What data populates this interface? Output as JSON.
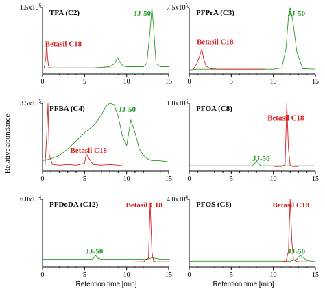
{
  "figure": {
    "ylabel": "Relative abundance",
    "xlabel": "Retention time [min]"
  },
  "colors": {
    "JJ-50": "#2a9a2a",
    "Betasil C18": "#d62020"
  },
  "chart_data": [
    {
      "type": "line",
      "title": "TFA (C2)",
      "ymax_label": "1.5x10",
      "ymax_exp": "6",
      "xlim": [
        0,
        15
      ],
      "ylim": [
        0,
        1
      ],
      "xticks": [
        "0",
        "5",
        "10",
        "15"
      ],
      "series": [
        {
          "name": "JJ-50",
          "x": [
            0,
            1,
            2,
            3,
            4,
            5,
            6,
            7,
            8,
            8.6,
            8.9,
            9.2,
            9.6,
            10,
            11,
            12,
            12.4,
            12.8,
            13.0,
            13.2,
            13.5,
            14,
            15
          ],
          "y": [
            0.05,
            0.05,
            0.05,
            0.05,
            0.05,
            0.05,
            0.05,
            0.06,
            0.07,
            0.12,
            0.22,
            0.14,
            0.08,
            0.07,
            0.07,
            0.07,
            0.12,
            0.65,
            1.0,
            0.7,
            0.12,
            0.07,
            0.07
          ]
        },
        {
          "name": "Betasil C18",
          "x": [
            0.2,
            0.4,
            0.5,
            0.6,
            0.7,
            0.8,
            1.0,
            1.5,
            3,
            5,
            7,
            9
          ],
          "y": [
            0.05,
            0.22,
            0.45,
            0.22,
            0.09,
            0.06,
            0.05,
            0.05,
            0.05,
            0.05,
            0.05,
            0.05
          ]
        }
      ]
    },
    {
      "type": "line",
      "title": "PFPrA (C3)",
      "ymax_label": "7.5x10",
      "ymax_exp": "5",
      "xlim": [
        0,
        15
      ],
      "ylim": [
        0,
        1
      ],
      "xticks": [
        "0",
        "5",
        "10",
        "15"
      ],
      "series": [
        {
          "name": "JJ-50",
          "x": [
            0,
            1,
            2,
            4,
            6,
            8,
            10,
            11,
            11.5,
            11.8,
            12.0,
            12.3,
            12.8,
            13.5,
            15
          ],
          "y": [
            0.02,
            0.03,
            0.03,
            0.03,
            0.03,
            0.03,
            0.03,
            0.05,
            0.35,
            0.85,
            1.0,
            0.8,
            0.3,
            0.04,
            0.03
          ]
        },
        {
          "name": "Betasil C18",
          "x": [
            0.5,
            0.9,
            1.2,
            1.5,
            1.7,
            2.0,
            2.5,
            3.5,
            5,
            7,
            9
          ],
          "y": [
            0.03,
            0.12,
            0.22,
            0.35,
            0.2,
            0.08,
            0.04,
            0.03,
            0.03,
            0.03,
            0.03
          ]
        }
      ]
    },
    {
      "type": "line",
      "title": "PFBA (C4)",
      "ymax_label": "3.5x10",
      "ymax_exp": "5",
      "xlim": [
        0,
        15
      ],
      "ylim": [
        0,
        1
      ],
      "xticks": [
        "0",
        "5",
        "10",
        "15"
      ],
      "series": [
        {
          "name": "JJ-50",
          "x": [
            0,
            1,
            2,
            3,
            4,
            5,
            6,
            7,
            7.5,
            8,
            8.5,
            9,
            9.5,
            10,
            10.5,
            11,
            11.5,
            12,
            12.5,
            13,
            14,
            15
          ],
          "y": [
            0.12,
            0.15,
            0.2,
            0.3,
            0.42,
            0.55,
            0.65,
            0.82,
            0.95,
            1.0,
            0.98,
            0.8,
            0.5,
            0.35,
            0.75,
            0.55,
            0.3,
            0.2,
            0.15,
            0.12,
            0.12,
            0.1
          ]
        },
        {
          "name": "Betasil C18",
          "x": [
            0.3,
            0.5,
            0.65,
            0.8,
            1.2,
            2,
            3,
            4,
            5,
            5.2,
            6,
            7,
            8,
            9,
            9.5
          ],
          "y": [
            0.05,
            0.5,
            1.0,
            0.2,
            0.06,
            0.05,
            0.06,
            0.05,
            0.08,
            0.22,
            0.06,
            0.05,
            0.06,
            0.05,
            0.04
          ]
        }
      ]
    },
    {
      "type": "line",
      "title": "PFOA (C8)",
      "ymax_label": "1.0x10",
      "ymax_exp": "6",
      "xlim": [
        0,
        15
      ],
      "ylim": [
        0,
        1
      ],
      "xticks": [
        "0",
        "5",
        "10",
        "15"
      ],
      "series": [
        {
          "name": "JJ-50",
          "x": [
            0,
            2,
            4,
            6,
            7.5,
            7.8,
            8.0,
            8.2,
            8.5,
            10,
            11.5,
            12,
            13,
            15
          ],
          "y": [
            0.04,
            0.04,
            0.04,
            0.04,
            0.04,
            0.08,
            0.12,
            0.08,
            0.04,
            0.04,
            0.04,
            0.04,
            0.04,
            0.04
          ]
        },
        {
          "name": "Betasil C18",
          "x": [
            10,
            11,
            11.4,
            11.6,
            11.8,
            12.0,
            12.3,
            13
          ],
          "y": [
            0.03,
            0.03,
            0.06,
            1.0,
            0.3,
            0.05,
            0.03,
            0.03
          ]
        }
      ]
    },
    {
      "type": "line",
      "title": "PFDoDA (C12)",
      "ymax_label": "6.0x10",
      "ymax_exp": "4",
      "xlim": [
        0,
        15
      ],
      "ylim": [
        0,
        1
      ],
      "xticks": [
        "0",
        "5",
        "10",
        "15"
      ],
      "series": [
        {
          "name": "JJ-50",
          "x": [
            0,
            2,
            4,
            6,
            6.3,
            6.6,
            7,
            9,
            11,
            12.5,
            13,
            13.5,
            14,
            15
          ],
          "y": [
            0.08,
            0.08,
            0.08,
            0.08,
            0.14,
            0.09,
            0.08,
            0.08,
            0.08,
            0.08,
            0.1,
            0.09,
            0.08,
            0.08
          ]
        },
        {
          "name": "Betasil C18",
          "x": [
            11,
            12,
            12.6,
            12.8,
            13.0,
            13.2,
            13.5,
            14,
            15
          ],
          "y": [
            0.04,
            0.04,
            0.1,
            0.95,
            0.2,
            0.05,
            0.04,
            0.04,
            0.04
          ]
        }
      ]
    },
    {
      "type": "line",
      "title": "PFOS (C8)",
      "ymax_label": "4.0x10",
      "ymax_exp": "4",
      "xlim": [
        0,
        15
      ],
      "ylim": [
        0,
        1
      ],
      "xticks": [
        "0",
        "5",
        "10",
        "15"
      ],
      "series": [
        {
          "name": "JJ-50",
          "x": [
            0,
            2,
            4,
            6,
            8,
            10,
            12,
            12.8,
            13.2,
            13.6,
            14,
            14.5,
            15
          ],
          "y": [
            0.05,
            0.05,
            0.05,
            0.05,
            0.05,
            0.05,
            0.05,
            0.08,
            0.14,
            0.1,
            0.06,
            0.05,
            0.05
          ]
        },
        {
          "name": "Betasil C18",
          "x": [
            11,
            11.5,
            11.8,
            12.0,
            12.2,
            12.4,
            12.7,
            13,
            14
          ],
          "y": [
            0.04,
            0.05,
            0.2,
            1.0,
            0.35,
            0.07,
            0.05,
            0.04,
            0.04
          ]
        }
      ]
    }
  ]
}
